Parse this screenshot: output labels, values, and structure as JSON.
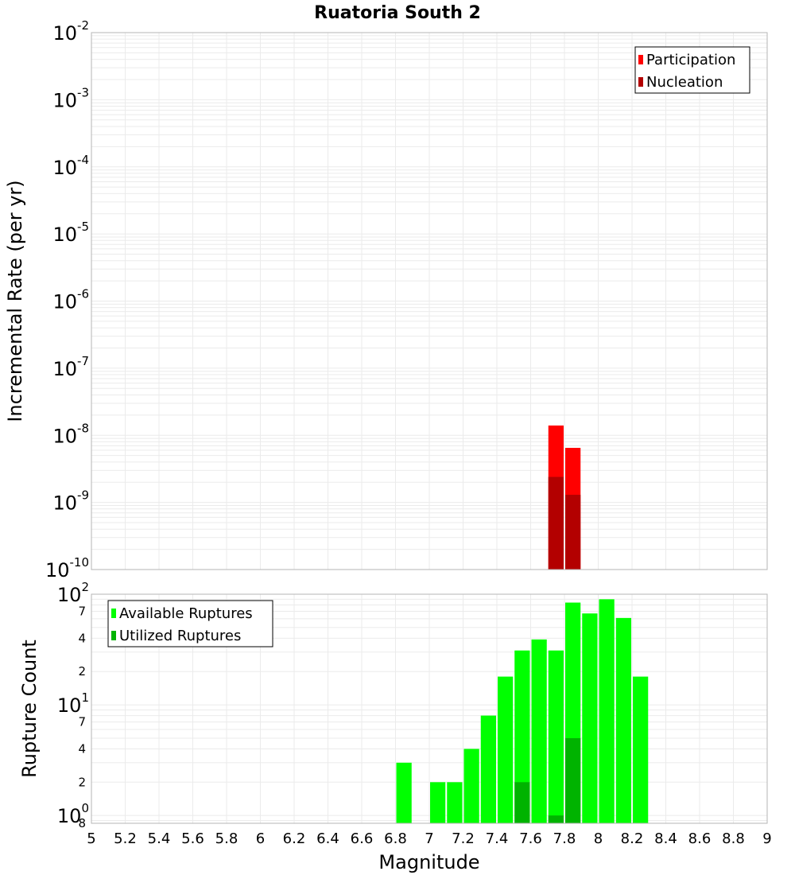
{
  "chart_data": [
    {
      "type": "bar",
      "title": "Ruatoria South 2",
      "xlabel": "",
      "ylabel": "Incremental Rate (per yr)",
      "yscale": "log",
      "xlim": [
        5,
        9
      ],
      "ylim": [
        1e-10,
        0.01
      ],
      "y_tick_exponents": [
        "-2",
        "-3",
        "-4",
        "-5",
        "-6",
        "-7",
        "-8",
        "-9",
        "-10"
      ],
      "legend_position": "top-right",
      "series": [
        {
          "name": "Participation",
          "color": "#ff0000",
          "x": [
            7.75,
            7.85
          ],
          "values": [
            1.4e-08,
            6.5e-09
          ]
        },
        {
          "name": "Nucleation",
          "color": "#b30000",
          "x": [
            7.75,
            7.85
          ],
          "values": [
            2.4e-09,
            1.3e-09
          ]
        }
      ]
    },
    {
      "type": "bar",
      "title": "",
      "xlabel": "Magnitude",
      "ylabel": "Rupture Count",
      "yscale": "log",
      "xlim": [
        5,
        9
      ],
      "ylim": [
        0.85,
        100
      ],
      "major_ticks": [
        {
          "value": 100,
          "base": "10",
          "exp": "2"
        },
        {
          "value": 10,
          "base": "10",
          "exp": "1"
        },
        {
          "value": 1,
          "base": "10",
          "exp": "0"
        }
      ],
      "minor_ticks": [
        {
          "value": 70,
          "label": "7"
        },
        {
          "value": 40,
          "label": "4"
        },
        {
          "value": 20,
          "label": "2"
        },
        {
          "value": 7,
          "label": "7"
        },
        {
          "value": 4,
          "label": "4"
        },
        {
          "value": 2,
          "label": "2"
        },
        {
          "value": 0.85,
          "label": "8"
        }
      ],
      "x_ticks": [
        "5",
        "5.2",
        "5.4",
        "5.6",
        "5.8",
        "6",
        "6.2",
        "6.4",
        "6.6",
        "6.8",
        "7",
        "7.2",
        "7.4",
        "7.6",
        "7.8",
        "8",
        "8.2",
        "8.4",
        "8.6",
        "8.8",
        "9"
      ],
      "legend_position": "top-left",
      "series": [
        {
          "name": "Available Ruptures",
          "color": "#00ff00",
          "x": [
            6.85,
            7.05,
            7.15,
            7.25,
            7.35,
            7.45,
            7.55,
            7.65,
            7.75,
            7.85,
            7.95,
            8.05,
            8.15,
            8.25
          ],
          "values": [
            3,
            2,
            2,
            4,
            8,
            18,
            31,
            39,
            31,
            84,
            67,
            90,
            61,
            18
          ]
        },
        {
          "name": "Utilized Ruptures",
          "color": "#00b300",
          "x": [
            7.55,
            7.75,
            7.85
          ],
          "values": [
            2,
            1,
            5
          ]
        }
      ]
    }
  ]
}
